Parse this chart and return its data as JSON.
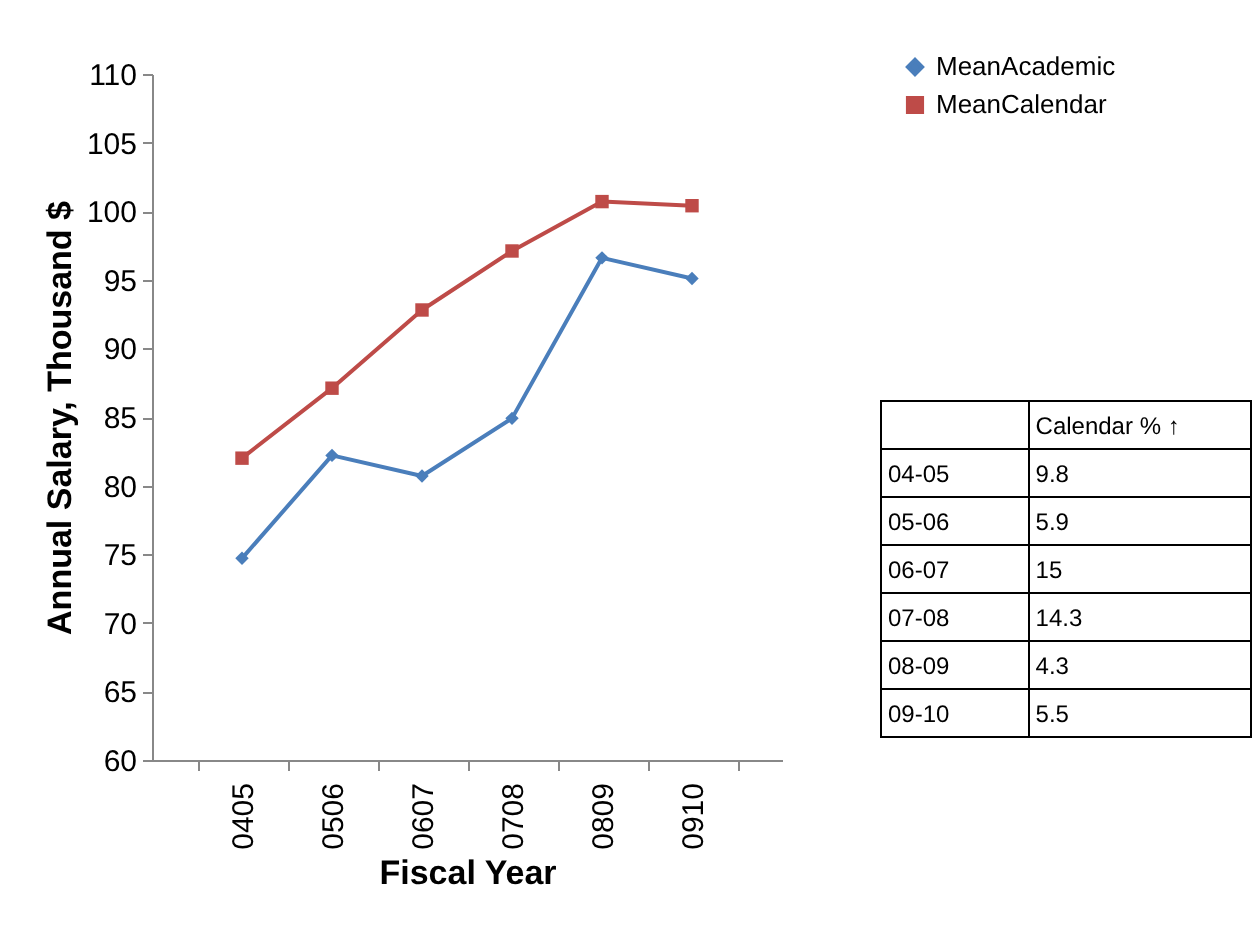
{
  "chart_data": {
    "type": "line",
    "xlabel": "Fiscal Year",
    "ylabel": "Annual Salary, Thousand $",
    "categories": [
      "0405",
      "0506",
      "0607",
      "0708",
      "0809",
      "0910"
    ],
    "series": [
      {
        "name": "MeanAcademic",
        "color": "#4a7ebb",
        "marker": "diamond",
        "values": [
          74.7,
          82.2,
          80.7,
          84.9,
          96.6,
          95.1
        ]
      },
      {
        "name": "MeanCalendar",
        "color": "#be4b48",
        "marker": "square",
        "values": [
          82.0,
          87.1,
          92.8,
          97.1,
          100.7,
          100.4
        ]
      }
    ],
    "ylim": [
      60,
      110
    ],
    "yticks": [
      60,
      65,
      70,
      75,
      80,
      85,
      90,
      95,
      100,
      105,
      110
    ],
    "grid": false,
    "legend": "top right",
    "annotations": [
      "Calendar % ↑",
      "04-05",
      "9.8",
      "05-06",
      "5.9",
      "06-07",
      "15",
      "07-08",
      "14.3",
      "08-09",
      "4.3",
      "09-10",
      "5.5"
    ]
  }
}
